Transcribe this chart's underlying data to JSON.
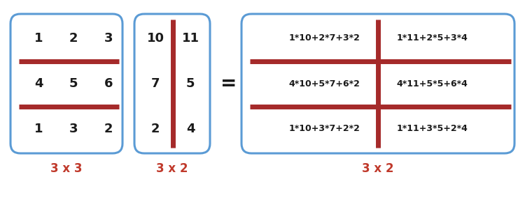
{
  "bg_color": "#ffffff",
  "bracket_color": "#5b9bd5",
  "line_color": "#a52a2a",
  "text_color": "#1a1a1a",
  "label_color": "#c0392b",
  "matrix_A": [
    [
      "1",
      "2",
      "3"
    ],
    [
      "4",
      "5",
      "6"
    ],
    [
      "1",
      "3",
      "2"
    ]
  ],
  "matrix_B": [
    [
      "10",
      "11"
    ],
    [
      "7",
      "5"
    ],
    [
      "2",
      "4"
    ]
  ],
  "matrix_C": [
    [
      "1*10+2*7+3*2",
      "1*11+2*5+3*4"
    ],
    [
      "4*10+5*7+6*2",
      "4*11+5*5+6*4"
    ],
    [
      "1*10+3*7+2*2",
      "1*11+3*5+2*4"
    ]
  ],
  "label_A": "3 x 3",
  "label_B": "3 x 2",
  "label_C": "3 x 2",
  "equals": "=",
  "figsize": [
    7.5,
    2.87
  ],
  "dpi": 100
}
